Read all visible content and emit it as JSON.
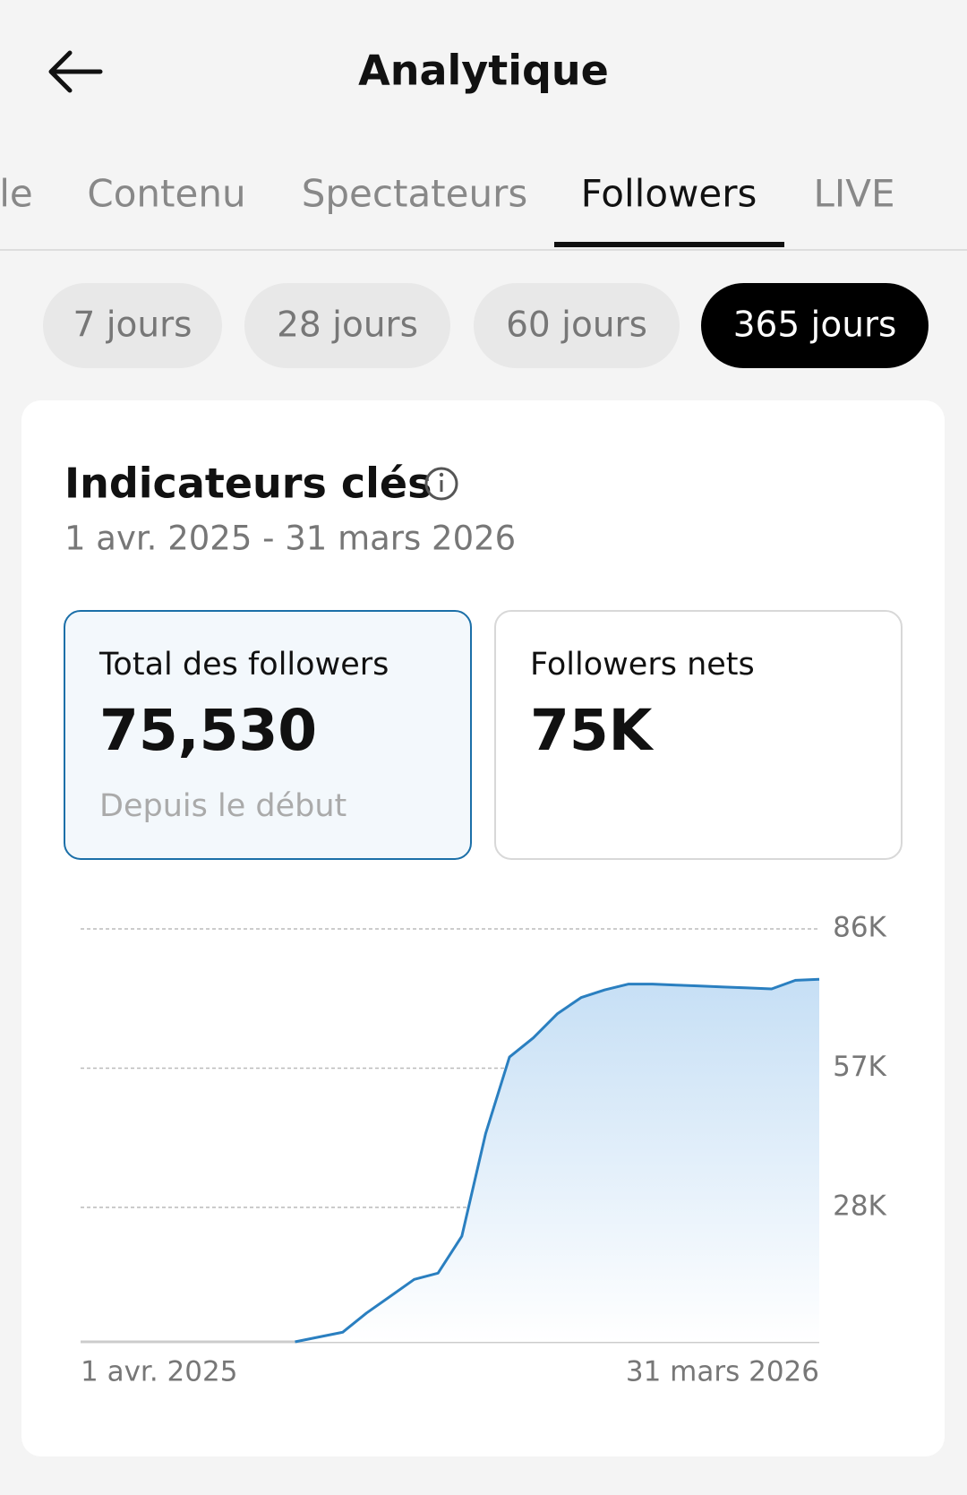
{
  "header": {
    "title": "Analytique"
  },
  "tabs": [
    "le",
    "Contenu",
    "Spectateurs",
    "Followers",
    "LIVE"
  ],
  "active_tab": 3,
  "periods": [
    "7 jours",
    "28 jours",
    "60 jours",
    "365 jours"
  ],
  "active_period": 3,
  "card": {
    "title": "Indicateurs clés",
    "date_range": "1 avr. 2025 - 31 mars 2026",
    "metrics": [
      {
        "label": "Total des followers",
        "value": "75,530",
        "note": "Depuis le début"
      },
      {
        "label": "Followers nets",
        "value": "75K"
      }
    ],
    "selected_metric": 0
  },
  "chart_data": {
    "type": "area",
    "categories": [
      "1 avr. 2025",
      null,
      null,
      null,
      null,
      null,
      null,
      null,
      null,
      null,
      null,
      null,
      null,
      null,
      null,
      null,
      null,
      null,
      null,
      null,
      null,
      null,
      null,
      null,
      null,
      null,
      null,
      null,
      null,
      null,
      null,
      "31 mars 2026"
    ],
    "values": [
      null,
      null,
      null,
      null,
      null,
      null,
      null,
      null,
      null,
      0,
      1000,
      2000,
      6000,
      9500,
      13000,
      14300,
      22000,
      43400,
      59300,
      63300,
      68300,
      71700,
      73300,
      74500,
      74500,
      74300,
      74100,
      73900,
      73700,
      73500,
      75300,
      75500
    ],
    "color": "#2a7fc0",
    "ylim": [
      0,
      86000
    ],
    "yticks": [
      {
        "value": 28000,
        "label": "28K"
      },
      {
        "value": 57000,
        "label": "57K"
      },
      {
        "value": 86000,
        "label": "86K"
      }
    ],
    "grid": true
  }
}
